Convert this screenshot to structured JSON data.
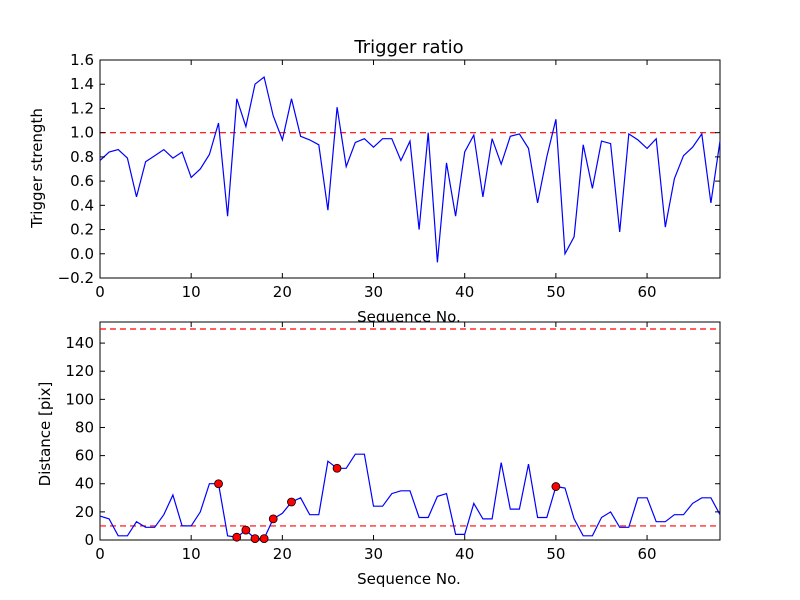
{
  "chart_data": [
    {
      "type": "line",
      "title": "Trigger ratio",
      "xlabel": "Sequence No.",
      "ylabel": "Trigger strength",
      "xlim": [
        0,
        68
      ],
      "ylim": [
        -0.2,
        1.6
      ],
      "xticks": [
        0,
        10,
        20,
        30,
        40,
        50,
        60
      ],
      "xtick_labels": [
        "0",
        "10",
        "20",
        "30",
        "40",
        "50",
        "60"
      ],
      "yticks": [
        -0.2,
        0.0,
        0.2,
        0.4,
        0.6,
        0.8,
        1.0,
        1.2,
        1.4,
        1.6
      ],
      "ytick_labels": [
        "−0.2",
        "0.0",
        "0.2",
        "0.4",
        "0.6",
        "0.8",
        "1.0",
        "1.2",
        "1.4",
        "1.6"
      ],
      "grid": false,
      "line_color": "#0000ff",
      "threshold_color": "#ff0000",
      "thresholds": [
        1.0
      ],
      "series": [
        {
          "x": [
            0,
            1,
            2,
            3,
            4,
            5,
            6,
            7,
            8,
            9,
            10,
            11,
            12,
            13,
            14,
            15,
            16,
            17,
            18,
            19,
            20,
            21,
            22,
            23,
            24,
            25,
            26,
            27,
            28,
            29,
            30,
            31,
            32,
            33,
            34,
            35,
            36,
            37,
            38,
            39,
            40,
            41,
            42,
            43,
            44,
            45,
            46,
            47,
            48,
            49,
            50,
            51,
            52,
            53,
            54,
            55,
            56,
            57,
            58,
            59,
            60,
            61,
            62,
            63,
            64,
            65,
            66,
            67,
            68
          ],
          "values": [
            0.77,
            0.84,
            0.86,
            0.79,
            0.47,
            0.76,
            0.81,
            0.86,
            0.79,
            0.84,
            0.63,
            0.7,
            0.82,
            1.08,
            0.31,
            1.28,
            1.05,
            1.4,
            1.46,
            1.14,
            0.94,
            1.28,
            0.97,
            0.94,
            0.9,
            0.36,
            1.21,
            0.72,
            0.92,
            0.95,
            0.88,
            0.95,
            0.95,
            0.77,
            0.93,
            0.2,
            1.0,
            -0.07,
            0.75,
            0.31,
            0.84,
            0.98,
            0.47,
            0.95,
            0.74,
            0.97,
            0.99,
            0.87,
            0.42,
            0.8,
            1.11,
            0.0,
            0.14,
            0.9,
            0.54,
            0.93,
            0.91,
            0.18,
            0.99,
            0.94,
            0.87,
            0.95,
            0.22,
            0.62,
            0.81,
            0.88,
            0.99,
            0.42,
            0.93
          ]
        }
      ]
    },
    {
      "type": "line",
      "title": "",
      "xlabel": "Sequence No.",
      "ylabel": "Distance [pix]",
      "xlim": [
        0,
        68
      ],
      "ylim": [
        0,
        155
      ],
      "xticks": [
        0,
        10,
        20,
        30,
        40,
        50,
        60
      ],
      "xtick_labels": [
        "0",
        "10",
        "20",
        "30",
        "40",
        "50",
        "60"
      ],
      "yticks": [
        0,
        20,
        40,
        60,
        80,
        100,
        120,
        140
      ],
      "ytick_labels": [
        "0",
        "20",
        "40",
        "60",
        "80",
        "100",
        "120",
        "140"
      ],
      "grid": false,
      "line_color": "#0000ff",
      "threshold_color": "#ff0000",
      "marker_color": "#ff0000",
      "thresholds": [
        10,
        150
      ],
      "series": [
        {
          "x": [
            0,
            1,
            2,
            3,
            4,
            5,
            6,
            7,
            8,
            9,
            10,
            11,
            12,
            13,
            14,
            15,
            16,
            17,
            18,
            19,
            20,
            21,
            22,
            23,
            24,
            25,
            26,
            27,
            28,
            29,
            30,
            31,
            32,
            33,
            34,
            35,
            36,
            37,
            38,
            39,
            40,
            41,
            42,
            43,
            44,
            45,
            46,
            47,
            48,
            49,
            50,
            51,
            52,
            53,
            54,
            55,
            56,
            57,
            58,
            59,
            60,
            61,
            62,
            63,
            64,
            65,
            66,
            67,
            68
          ],
          "values": [
            17,
            15,
            3,
            3,
            13,
            9,
            9,
            18,
            32,
            10,
            10,
            20,
            40,
            40,
            3,
            2,
            7,
            1,
            1,
            15,
            19,
            27,
            30,
            18,
            18,
            56,
            51,
            51,
            61,
            61,
            24,
            24,
            33,
            35,
            35,
            16,
            16,
            31,
            33,
            4,
            4,
            26,
            15,
            15,
            55,
            22,
            22,
            54,
            16,
            16,
            38,
            37,
            15,
            3,
            3,
            16,
            20,
            9,
            9,
            30,
            30,
            13,
            13,
            18,
            18,
            26,
            30,
            30,
            18
          ],
          "markers": {
            "x": [
              13,
              15,
              16,
              17,
              18,
              19,
              21,
              26,
              50
            ],
            "y": [
              40,
              2,
              7,
              1,
              1,
              15,
              27,
              51,
              38
            ]
          }
        }
      ]
    }
  ]
}
